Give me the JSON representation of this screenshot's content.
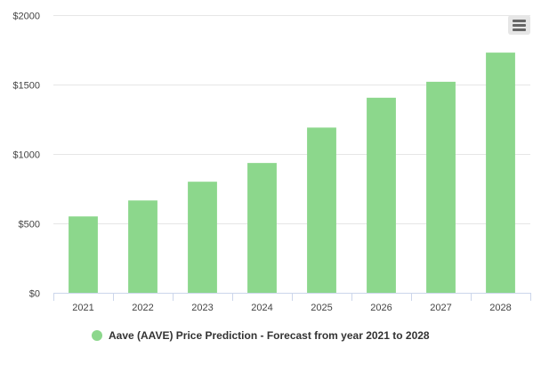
{
  "chart_data": {
    "type": "bar",
    "categories": [
      "2021",
      "2022",
      "2023",
      "2024",
      "2025",
      "2026",
      "2027",
      "2028"
    ],
    "series": [
      {
        "name": "Aave (AAVE) Price Prediction - Forecast from year 2021 to 2028",
        "values": [
          550,
          665,
          800,
          935,
          1190,
          1405,
          1520,
          1730
        ],
        "color": "#8cd78c"
      }
    ],
    "y_ticks": [
      "$0",
      "$500",
      "$1000",
      "$1500",
      "$2000"
    ],
    "y_tick_values": [
      0,
      500,
      1000,
      1500,
      2000
    ],
    "ylim": [
      0,
      2000
    ],
    "grid": true,
    "legend_position": "bottom-center"
  },
  "legend": {
    "label": "Aave (AAVE) Price Prediction - Forecast from year 2021 to 2028",
    "color": "#8cd78c"
  },
  "menu": {
    "icon": "hamburger-menu-icon"
  }
}
